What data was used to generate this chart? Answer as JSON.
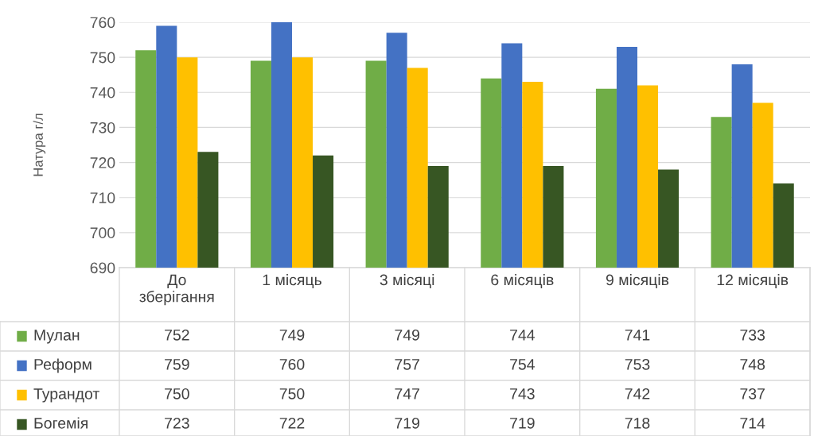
{
  "chart_data": {
    "type": "bar",
    "ylabel": "Натура г/л",
    "categories": [
      "До зберігання",
      "1 місяць",
      "3 місяці",
      "6 місяців",
      "9 місяців",
      "12 місяців"
    ],
    "series": [
      {
        "name": "Мулан",
        "color": "#70ad47",
        "values": [
          752,
          749,
          749,
          744,
          741,
          733
        ]
      },
      {
        "name": "Реформ",
        "color": "#4472c4",
        "values": [
          759,
          760,
          757,
          754,
          753,
          748
        ]
      },
      {
        "name": "Турандот",
        "color": "#ffc000",
        "values": [
          750,
          750,
          747,
          743,
          742,
          737
        ]
      },
      {
        "name": "Богемія",
        "color": "#375623",
        "values": [
          723,
          722,
          719,
          719,
          718,
          714
        ]
      }
    ],
    "ylim": [
      690,
      760
    ],
    "yticks": [
      690,
      700,
      710,
      720,
      730,
      740,
      750,
      760
    ],
    "grid": "y",
    "legend": "bottom",
    "data_labels": true
  }
}
